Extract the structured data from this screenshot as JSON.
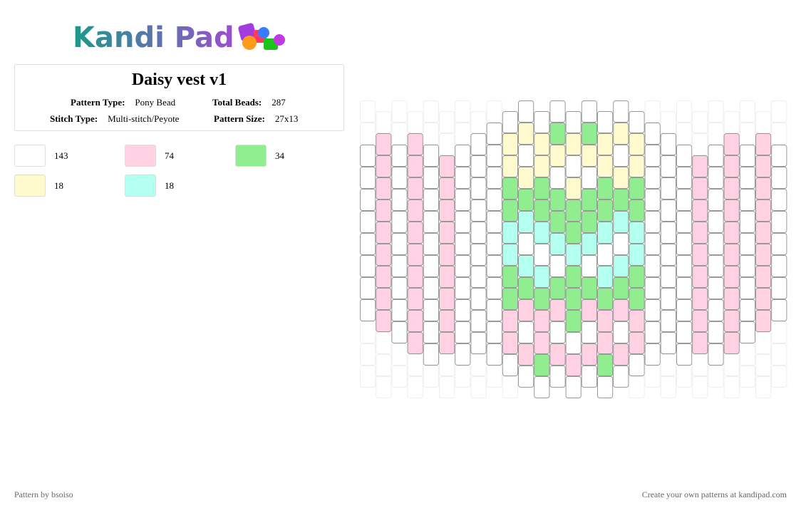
{
  "header": {
    "logo": "Kandi Pad"
  },
  "pattern": {
    "title": "Daisy vest v1",
    "info": [
      {
        "label": "Pattern Type:",
        "value": "Pony Bead"
      },
      {
        "label": "Total Beads:",
        "value": "287"
      },
      {
        "label": "Stitch Type:",
        "value": "Multi-stitch/Peyote"
      },
      {
        "label": "Pattern Size:",
        "value": "27x13"
      }
    ]
  },
  "legend": [
    {
      "color": "#ffffff",
      "count": 143
    },
    {
      "color": "#ffd1e3",
      "count": 74
    },
    {
      "color": "#90ee90",
      "count": 34
    },
    {
      "color": "#fffacd",
      "count": 18
    },
    {
      "color": "#b3fff0",
      "count": 18
    }
  ],
  "footer": {
    "left": "Pattern by bsoiso",
    "right": "Create your own patterns at kandipad.com"
  }
}
